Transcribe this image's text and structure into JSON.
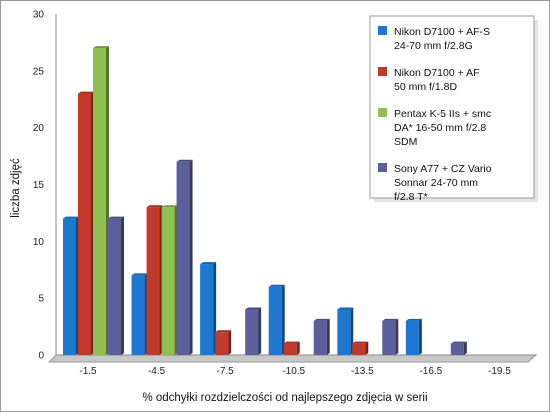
{
  "chart_data": {
    "type": "bar",
    "title": "",
    "xlabel": "% odchyłki rozdzielczości od najlepszego zdjęcia w serii",
    "ylabel": "liczba zdjęć",
    "categories": [
      "-1.5",
      "-4.5",
      "-7.5",
      "-10.5",
      "-13.5",
      "-16.5",
      "-19.5"
    ],
    "ylim": [
      0,
      30
    ],
    "yticks": [
      0,
      5,
      10,
      15,
      20,
      25,
      30
    ],
    "grid": false,
    "legend_position": "top-right",
    "series": [
      {
        "name": "Nikon D7100 + AF-S 24-70 mm f/2.8G",
        "legend_lines": [
          "Nikon D7100 + AF-S",
          "24-70 mm f/2.8G"
        ],
        "color": "#1f77d4",
        "values": [
          12,
          7,
          8,
          6,
          4,
          3,
          0
        ]
      },
      {
        "name": "Nikon D7100 + AF 50 mm f/1.8D",
        "legend_lines": [
          "Nikon D7100 + AF",
          "50 mm f/1.8D"
        ],
        "color": "#c0392b",
        "values": [
          23,
          13,
          2,
          1,
          1,
          0,
          0
        ]
      },
      {
        "name": "Pentax K-5 IIs + smc DA* 16-50 mm f/2.8 SDM",
        "legend_lines": [
          "Pentax K-5 IIs + smc",
          "DA* 16-50 mm f/2.8",
          "SDM"
        ],
        "color": "#8fbf4f",
        "values": [
          27,
          13,
          0,
          0,
          0,
          0,
          0
        ]
      },
      {
        "name": "Sony A77 + CZ Vario Sonnar 24-70 mm f/2.8 T*",
        "legend_lines": [
          "Sony A77 + CZ Vario",
          "Sonnar 24-70 mm",
          "f/2.8 T*"
        ],
        "color": "#5b5f9a",
        "values": [
          12,
          17,
          4,
          3,
          3,
          1,
          0
        ]
      }
    ]
  }
}
